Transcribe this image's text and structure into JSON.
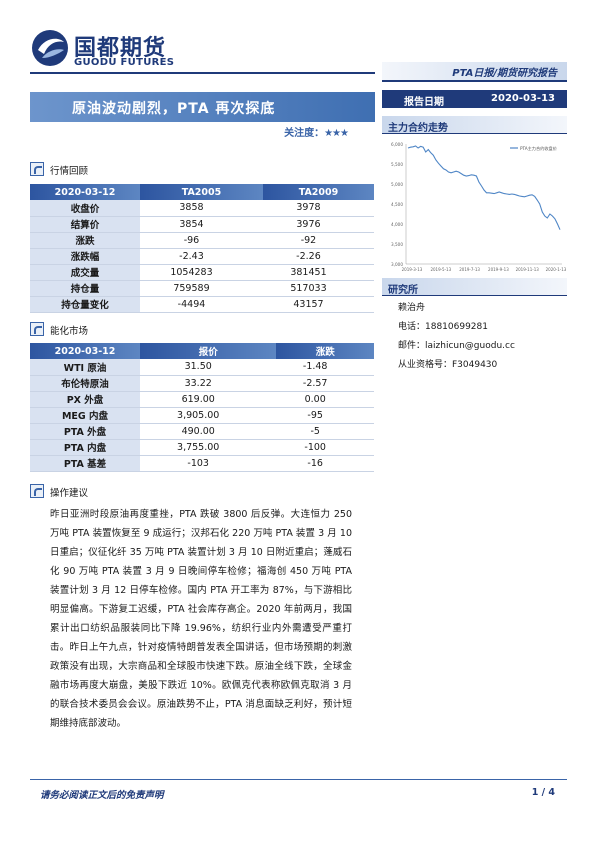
{
  "brand": {
    "name_cn": "国都期货",
    "name_en": "GUODU FUTURES",
    "color": "#1f3a7a",
    "accent": "#3f6fb2"
  },
  "report_type": "PTA日报/期货研究报告",
  "title": "原油波动剧烈，PTA 再次探底",
  "attention": {
    "label": "关注度：",
    "stars": "★★★"
  },
  "report_date": {
    "label": "报告日期",
    "value": "2020-03-13"
  },
  "sidebar": {
    "trend_heading": "主力合约走势",
    "institute_heading": "研究所",
    "analyst": "赖治舟",
    "phone": "电话：18810699281",
    "email": "邮件：laizhicun@guodu.cc",
    "license": "从业资格号：F3049430"
  },
  "chart_data": {
    "type": "line",
    "legend": "PTA主力合约收盘价",
    "ylim": [
      3000,
      6000
    ],
    "y_ticks": [
      "6,000",
      "5,500",
      "5,000",
      "4,500",
      "4,000",
      "3,500",
      "3,000"
    ],
    "x_ticks": [
      "2019-3-13",
      "2019-5-13",
      "2019-7-13",
      "2019-9-13",
      "2019-11-13",
      "2020-1-13"
    ],
    "values": [
      5900,
      5920,
      5930,
      5950,
      5900,
      5940,
      5920,
      5800,
      5860,
      5780,
      5720,
      5600,
      5520,
      5450,
      5380,
      5350,
      5300,
      5280,
      5300,
      5320,
      5300,
      5260,
      5220,
      5200,
      5210,
      5230,
      5220,
      5200,
      5050,
      4950,
      4850,
      4780,
      4780,
      4770,
      4760,
      4780,
      4800,
      4780,
      4760,
      4750,
      4740,
      4750,
      4740,
      4720,
      4700,
      4690,
      4680,
      4700,
      4720,
      4730,
      4690,
      4600,
      4500,
      4300,
      4200,
      4150,
      4250,
      4200,
      4130,
      4000,
      3858
    ]
  },
  "sections": {
    "review": "行情回顾",
    "energy": "能化市场",
    "advice": "操作建议"
  },
  "market_table": {
    "headers": [
      "2020-03-12",
      "TA2005",
      "TA2009"
    ],
    "rows": [
      {
        "label": "收盘价",
        "a": "3858",
        "b": "3978"
      },
      {
        "label": "结算价",
        "a": "3854",
        "b": "3976"
      },
      {
        "label": "涨跌",
        "a": "-96",
        "b": "-92"
      },
      {
        "label": "涨跌幅",
        "a": "-2.43",
        "b": "-2.26"
      },
      {
        "label": "成交量",
        "a": "1054283",
        "b": "381451"
      },
      {
        "label": "持仓量",
        "a": "759589",
        "b": "517033"
      },
      {
        "label": "持仓量变化",
        "a": "-4494",
        "b": "43157"
      }
    ]
  },
  "energy_table": {
    "headers": [
      "2020-03-12",
      "报价",
      "涨跌"
    ],
    "rows": [
      {
        "label": "WTI 原油",
        "a": "31.50",
        "b": "-1.48"
      },
      {
        "label": "布伦特原油",
        "a": "33.22",
        "b": "-2.57"
      },
      {
        "label": "PX 外盘",
        "a": "619.00",
        "b": "0.00"
      },
      {
        "label": "MEG 内盘",
        "a": "3,905.00",
        "b": "-95"
      },
      {
        "label": "PTA 外盘",
        "a": "490.00",
        "b": "-5"
      },
      {
        "label": "PTA 内盘",
        "a": "3,755.00",
        "b": "-100"
      },
      {
        "label": "PTA 基差",
        "a": "-103",
        "b": "-16"
      }
    ]
  },
  "advice_text": "昨日亚洲时段原油再度重挫，PTA 跌破 3800 后反弹。大连恒力 250 万吨 PTA 装置恢复至 9 成运行；汉邦石化 220 万吨 PTA 装置 3 月 10 日重启；仪征化纤 35 万吨 PTA 装置计划 3 月 10 日附近重启；蓬威石化 90 万吨 PTA 装置 3 月 9 日晚间停车检修；福海创 450 万吨 PTA 装置计划 3 月 12 日停车检修。国内 PTA 开工率为 87%，与下游相比明显偏高。下游复工迟缓，PTA 社会库存高企。2020 年前两月，我国累计出口纺织品服装同比下降 19.96%，纺织行业内外需遭受严重打击。昨日上午九点，针对疫情特朗普发表全国讲话，但市场预期的刺激政策没有出现，大宗商品和全球股市快速下跌。原油全线下跌，全球金融市场再度大崩盘，美股下跌近 10%。欧佩克代表称欧佩克取消 3 月的联合技术委员会会议。原油跌势不止，PTA 消息面缺乏利好，预计短期维持底部波动。",
  "footer": {
    "disclaimer": "请务必阅读正文后的免责声明",
    "page": "1 / 4"
  }
}
